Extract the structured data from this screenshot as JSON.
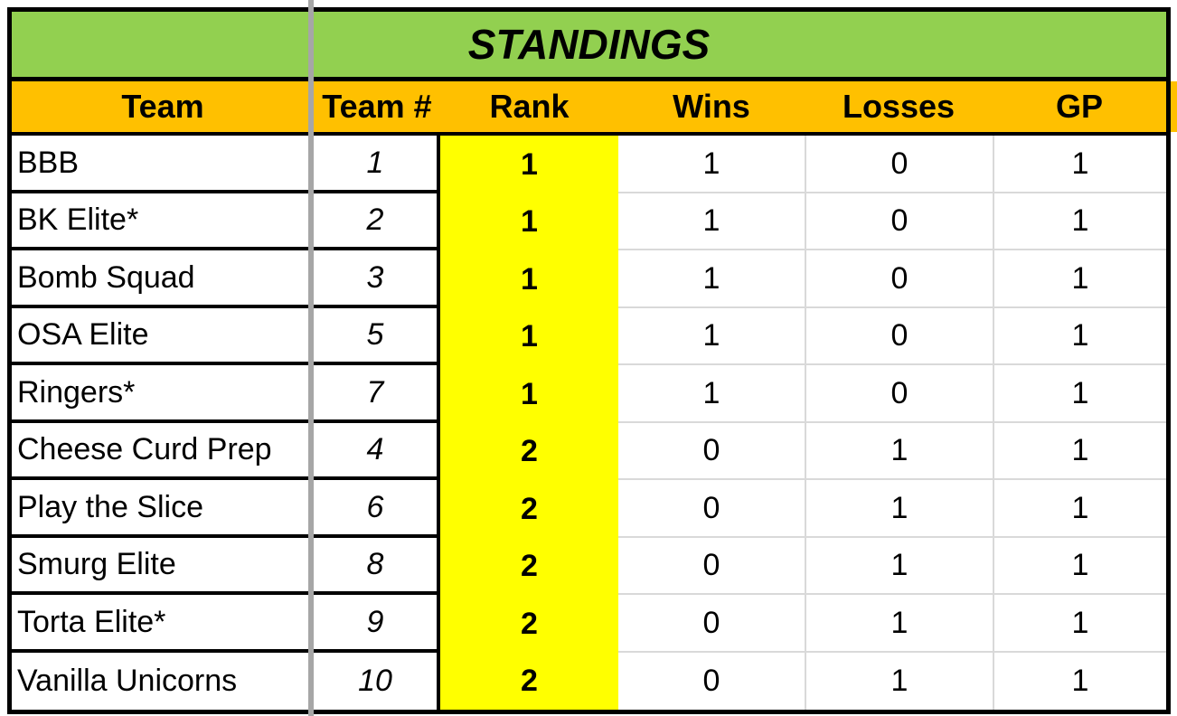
{
  "title": "STANDINGS",
  "columns": [
    "Team",
    "Team #",
    "Rank",
    "Wins",
    "Losses",
    "GP"
  ],
  "rows": [
    {
      "team": "BBB",
      "team_num": "1",
      "rank": "1",
      "wins": "1",
      "losses": "0",
      "gp": "1"
    },
    {
      "team": "BK Elite*",
      "team_num": "2",
      "rank": "1",
      "wins": "1",
      "losses": "0",
      "gp": "1"
    },
    {
      "team": "Bomb Squad",
      "team_num": "3",
      "rank": "1",
      "wins": "1",
      "losses": "0",
      "gp": "1"
    },
    {
      "team": "OSA Elite",
      "team_num": "5",
      "rank": "1",
      "wins": "1",
      "losses": "0",
      "gp": "1"
    },
    {
      "team": "Ringers*",
      "team_num": "7",
      "rank": "1",
      "wins": "1",
      "losses": "0",
      "gp": "1"
    },
    {
      "team": "Cheese Curd Prep",
      "team_num": "4",
      "rank": "2",
      "wins": "0",
      "losses": "1",
      "gp": "1"
    },
    {
      "team": "Play the Slice",
      "team_num": "6",
      "rank": "2",
      "wins": "0",
      "losses": "1",
      "gp": "1"
    },
    {
      "team": "Smurg Elite",
      "team_num": "8",
      "rank": "2",
      "wins": "0",
      "losses": "1",
      "gp": "1"
    },
    {
      "team": "Torta Elite*",
      "team_num": "9",
      "rank": "2",
      "wins": "0",
      "losses": "1",
      "gp": "1"
    },
    {
      "team": "Vanilla Unicorns",
      "team_num": "10",
      "rank": "2",
      "wins": "0",
      "losses": "1",
      "gp": "1"
    }
  ],
  "colors": {
    "title_bg": "#92D050",
    "header_bg": "#FFC000",
    "rank_bg": "#FFFF00",
    "grid_line": "#D9D9D9",
    "freeze_line": "#A6A6A6",
    "border_color": "#000000",
    "page_bg": "#FFFFFF",
    "text_color": "#000000"
  }
}
